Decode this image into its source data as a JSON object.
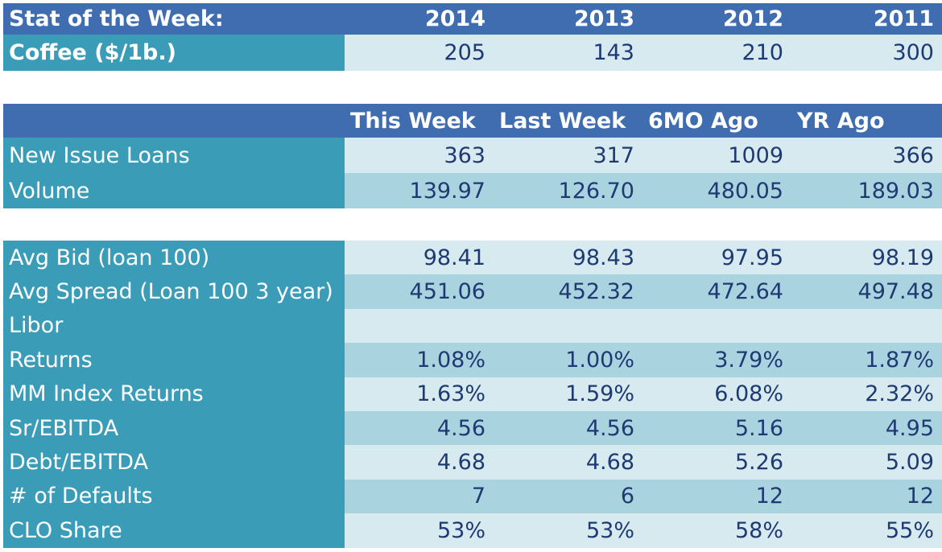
{
  "stat_table": {
    "header": [
      "Stat of the Week:",
      "2014",
      "2013",
      "2012",
      "2011"
    ],
    "rows": [
      {
        "label": "Coffee ($/1b.)",
        "values": [
          "205",
          "143",
          "210",
          "300"
        ]
      }
    ]
  },
  "loan_table": {
    "header": [
      "",
      "This Week",
      "Last Week",
      "6MO Ago",
      "YR Ago"
    ],
    "rows": [
      {
        "label": "New Issue Loans",
        "values": [
          "363",
          "317",
          "1009",
          "366"
        ]
      },
      {
        "label": "Volume",
        "values": [
          "139.97",
          "126.70",
          "480.05",
          "189.03"
        ]
      }
    ]
  },
  "metrics_table": {
    "rows": [
      {
        "label": "Avg Bid (loan 100)",
        "values": [
          "98.41",
          "98.43",
          "97.95",
          "98.19"
        ]
      },
      {
        "label": "Avg Spread (Loan 100 3 year)",
        "values": [
          "451.06",
          "452.32",
          "472.64",
          "497.48"
        ]
      },
      {
        "label": "Libor",
        "values": [
          "",
          "",
          "",
          ""
        ]
      },
      {
        "label": "Returns",
        "values": [
          "1.08%",
          "1.00%",
          "3.79%",
          "1.87%"
        ]
      },
      {
        "label": "MM Index Returns",
        "values": [
          "1.63%",
          "1.59%",
          "6.08%",
          "2.32%"
        ]
      },
      {
        "label": "Sr/EBITDA",
        "values": [
          "4.56",
          "4.56",
          "5.16",
          "4.95"
        ]
      },
      {
        "label": "Debt/EBITDA",
        "values": [
          "4.68",
          "4.68",
          "5.26",
          "5.09"
        ]
      },
      {
        "label": "# of Defaults",
        "values": [
          "7",
          "6",
          "12",
          "12"
        ]
      },
      {
        "label": "CLO Share",
        "values": [
          "53%",
          "53%",
          "58%",
          "55%"
        ]
      }
    ]
  },
  "colors": {
    "header_bg": "#3f6db0",
    "label_bg": "#3b9cb8",
    "row_light": "#d6eaf0",
    "row_dark": "#a9d3df",
    "value_text": "#1f3a73"
  }
}
